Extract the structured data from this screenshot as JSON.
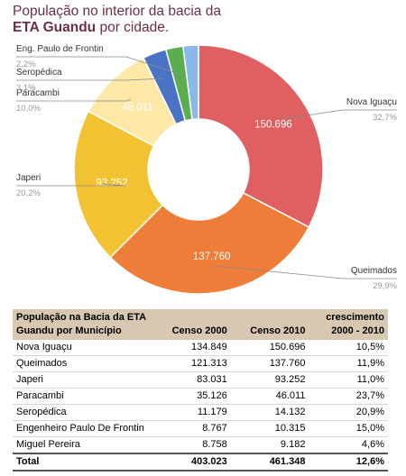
{
  "title": {
    "line1": "População no interior da bacia da",
    "bold": "ETA Guandu",
    "rest": " por cidade."
  },
  "colors": {
    "nova_iguacu": "#e05f61",
    "queimados": "#ef7d3a",
    "japeri": "#f1c232",
    "paracambi": "#fde8a8",
    "seropedica": "#4a73c5",
    "frontin": "#5aae4d",
    "miguel": "#8ab8e8",
    "title": "#6b2f47",
    "header_bg": "#d9c8b1"
  },
  "chart_data": {
    "type": "pie",
    "donut": true,
    "slices": [
      {
        "name": "Nova Iguaçu",
        "value": 150696,
        "label": "150.696",
        "percent": "32,7%",
        "color": "#e05f61"
      },
      {
        "name": "Queimados",
        "value": 137760,
        "label": "137.760",
        "percent": "29,9%",
        "color": "#ef7d3a"
      },
      {
        "name": "Japeri",
        "value": 93252,
        "label": "93.252",
        "percent": "20,2%",
        "color": "#f1c232"
      },
      {
        "name": "Paracambi",
        "value": 46011,
        "label": "46.011",
        "percent": "10,0%",
        "color": "#fde8a8"
      },
      {
        "name": "Seropédica",
        "value": 14132,
        "label": "",
        "percent": "3,1%",
        "color": "#4a73c5"
      },
      {
        "name": "Eng. Paulo de Frontin",
        "value": 10315,
        "label": "",
        "percent": "2,2%",
        "color": "#5aae4d"
      },
      {
        "name": "Miguel Pereira",
        "value": 9182,
        "label": "",
        "percent": "",
        "color": "#8ab8e8"
      }
    ]
  },
  "table": {
    "headers": [
      "População na Bacia da ETA Guandu por Município",
      "Censo 2000",
      "Censo 2010",
      "crescimento 2000 - 2010"
    ],
    "rows": [
      [
        "Nova Iguaçu",
        "134.849",
        "150.696",
        "10,5%"
      ],
      [
        "Queimados",
        "121.313",
        "137.760",
        "11,9%"
      ],
      [
        "Japeri",
        "83.031",
        "93.252",
        "11,0%"
      ],
      [
        "Paracambi",
        "35.126",
        "46.011",
        "23,7%"
      ],
      [
        "Seropédica",
        "11.179",
        "14.132",
        "20,9%"
      ],
      [
        "Engenheiro Paulo De Frontin",
        "8.767",
        "10.315",
        "15,0%"
      ],
      [
        "Miguel Pereira",
        "8.758",
        "9.182",
        "4,6%"
      ]
    ],
    "total": [
      "Total",
      "403.023",
      "461.348",
      "12,6%"
    ]
  }
}
